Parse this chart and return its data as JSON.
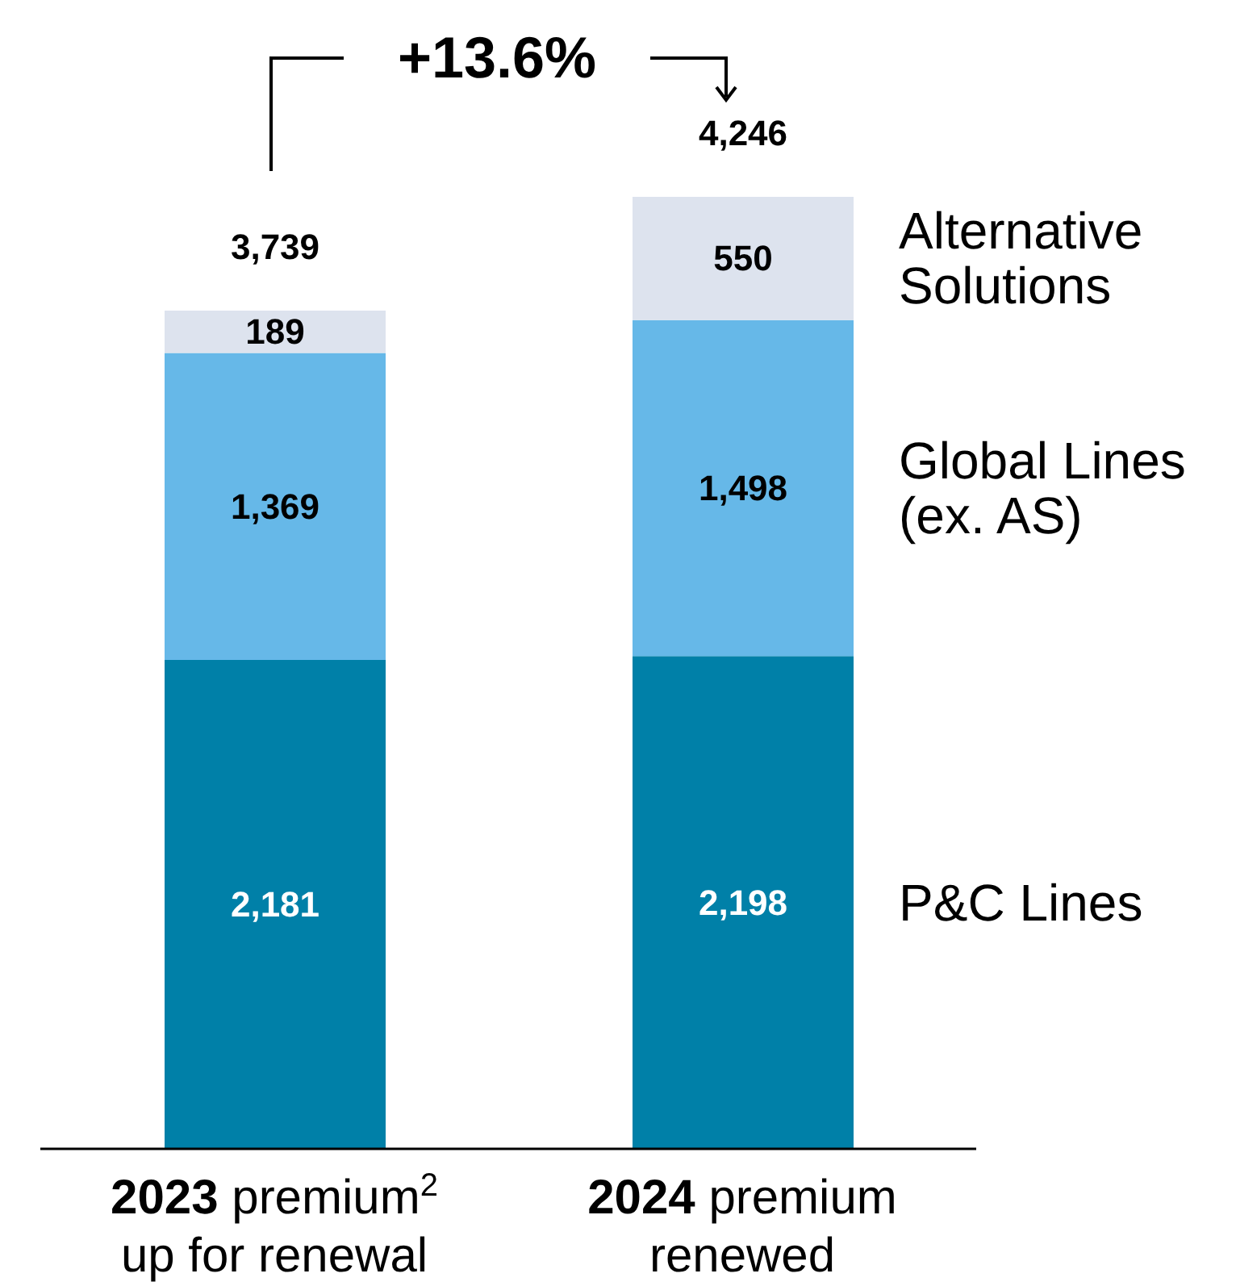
{
  "chart_data": {
    "type": "bar",
    "stacked": true,
    "categories": [
      "2023 premium$^{2}$ up for renewal",
      "2024 premium renewed"
    ],
    "series": [
      {
        "name": "P&C Lines",
        "color": "#0080a8",
        "values": [
          2181,
          2198
        ],
        "value_labels": [
          "2,181",
          "2,198"
        ]
      },
      {
        "name": "Global Lines (ex. AS)",
        "color": "#66b8e8",
        "values": [
          1369,
          1498
        ],
        "value_labels": [
          "1,369",
          "1,498"
        ]
      },
      {
        "name": "Alternative Solutions",
        "color": "#dde3ee",
        "values": [
          189,
          550
        ],
        "value_labels": [
          "189",
          "550"
        ]
      }
    ],
    "totals": [
      "3,739",
      "4,246"
    ],
    "annotations": [
      "+13.6%"
    ],
    "legend": "right"
  }
}
